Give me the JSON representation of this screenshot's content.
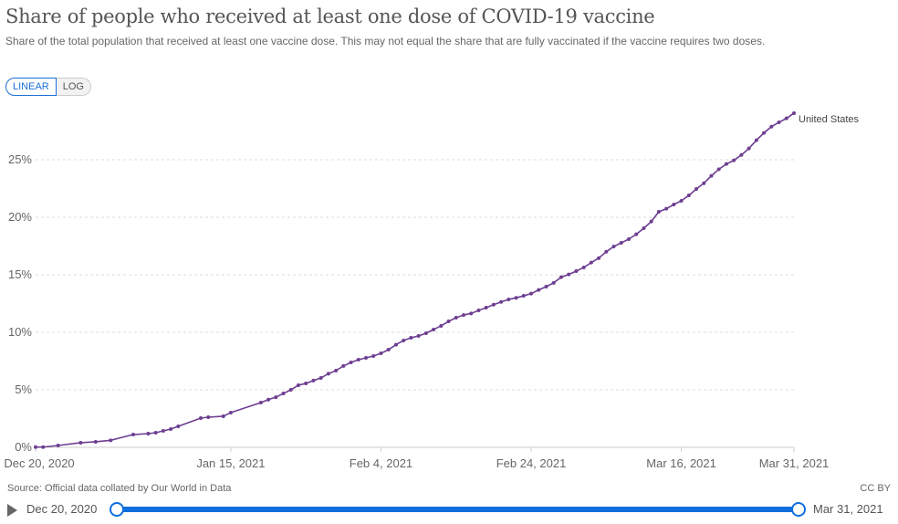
{
  "header": {
    "title": "Share of people who received at least one dose of COVID-19 vaccine",
    "subtitle": "Share of the total population that received at least one vaccine dose. This may not equal the share that are fully vaccinated if the vaccine requires two doses."
  },
  "scale_toggle": {
    "linear": "LINEAR",
    "log": "LOG",
    "selected": "LINEAR"
  },
  "footer": {
    "source": "Source: Official data collated by Our World in Data",
    "license": "CC BY"
  },
  "timeline": {
    "start": "Dec 20, 2020",
    "end": "Mar 31, 2021",
    "play_icon": "play-icon"
  },
  "colors": {
    "series": "#6d3e91",
    "accent": "#0f6fdd",
    "grid": "#dddddd"
  },
  "chart_data": {
    "type": "line",
    "xlim": [
      "2020-12-20",
      "2021-03-31"
    ],
    "ylim": [
      0,
      30
    ],
    "y_scale": "linear",
    "grid": true,
    "x_ticks": [
      {
        "date": "2020-12-20",
        "label": "Dec 20, 2020"
      },
      {
        "date": "2021-01-15",
        "label": "Jan 15, 2021"
      },
      {
        "date": "2021-02-04",
        "label": "Feb 4, 2021"
      },
      {
        "date": "2021-02-24",
        "label": "Feb 24, 2021"
      },
      {
        "date": "2021-03-16",
        "label": "Mar 16, 2021"
      },
      {
        "date": "2021-03-31",
        "label": "Mar 31, 2021"
      }
    ],
    "y_ticks": [
      {
        "value": 0,
        "label": "0%"
      },
      {
        "value": 5,
        "label": "5%"
      },
      {
        "value": 10,
        "label": "10%"
      },
      {
        "value": 15,
        "label": "15%"
      },
      {
        "value": 20,
        "label": "20%"
      },
      {
        "value": 25,
        "label": "25%"
      }
    ],
    "series": [
      {
        "name": "United States",
        "x": [
          "2020-12-20",
          "2020-12-21",
          "2020-12-23",
          "2020-12-26",
          "2020-12-28",
          "2020-12-30",
          "2021-01-02",
          "2021-01-04",
          "2021-01-05",
          "2021-01-06",
          "2021-01-07",
          "2021-01-08",
          "2021-01-11",
          "2021-01-12",
          "2021-01-14",
          "2021-01-15",
          "2021-01-19",
          "2021-01-20",
          "2021-01-21",
          "2021-01-22",
          "2021-01-23",
          "2021-01-24",
          "2021-01-25",
          "2021-01-26",
          "2021-01-27",
          "2021-01-28",
          "2021-01-29",
          "2021-01-30",
          "2021-01-31",
          "2021-02-01",
          "2021-02-02",
          "2021-02-03",
          "2021-02-04",
          "2021-02-05",
          "2021-02-06",
          "2021-02-07",
          "2021-02-08",
          "2021-02-09",
          "2021-02-10",
          "2021-02-11",
          "2021-02-12",
          "2021-02-13",
          "2021-02-14",
          "2021-02-15",
          "2021-02-16",
          "2021-02-17",
          "2021-02-18",
          "2021-02-19",
          "2021-02-20",
          "2021-02-21",
          "2021-02-22",
          "2021-02-23",
          "2021-02-24",
          "2021-02-25",
          "2021-02-26",
          "2021-02-27",
          "2021-02-28",
          "2021-03-01",
          "2021-03-02",
          "2021-03-03",
          "2021-03-04",
          "2021-03-05",
          "2021-03-06",
          "2021-03-07",
          "2021-03-08",
          "2021-03-09",
          "2021-03-10",
          "2021-03-11",
          "2021-03-12",
          "2021-03-13",
          "2021-03-14",
          "2021-03-15",
          "2021-03-16",
          "2021-03-17",
          "2021-03-18",
          "2021-03-19",
          "2021-03-20",
          "2021-03-21",
          "2021-03-22",
          "2021-03-23",
          "2021-03-24",
          "2021-03-25",
          "2021-03-26",
          "2021-03-27",
          "2021-03-28",
          "2021-03-29",
          "2021-03-30",
          "2021-03-31"
        ],
        "y": [
          0.02,
          0.02,
          0.16,
          0.4,
          0.48,
          0.61,
          1.11,
          1.19,
          1.27,
          1.43,
          1.59,
          1.83,
          2.54,
          2.62,
          2.7,
          3.02,
          3.89,
          4.15,
          4.36,
          4.68,
          5.0,
          5.4,
          5.56,
          5.8,
          6.03,
          6.4,
          6.67,
          7.07,
          7.38,
          7.62,
          7.78,
          7.94,
          8.17,
          8.49,
          8.92,
          9.29,
          9.52,
          9.68,
          9.92,
          10.24,
          10.56,
          10.95,
          11.27,
          11.5,
          11.64,
          11.9,
          12.14,
          12.4,
          12.64,
          12.86,
          13.0,
          13.17,
          13.36,
          13.68,
          13.97,
          14.3,
          14.79,
          15.03,
          15.32,
          15.63,
          16.06,
          16.45,
          17.0,
          17.46,
          17.78,
          18.1,
          18.52,
          19.05,
          19.63,
          20.48,
          20.74,
          21.11,
          21.43,
          21.9,
          22.46,
          22.96,
          23.6,
          24.18,
          24.63,
          24.95,
          25.42,
          25.98,
          26.7,
          27.33,
          27.88,
          28.25,
          28.6,
          29.05
        ]
      }
    ]
  }
}
